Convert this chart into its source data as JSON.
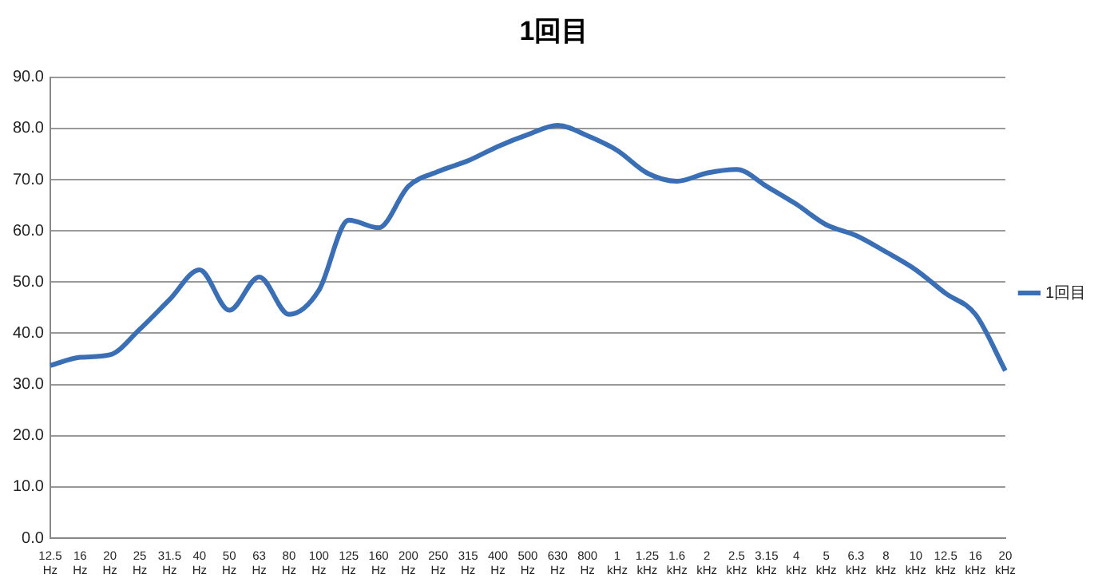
{
  "chart_data": {
    "type": "line",
    "title": "1回目",
    "categories": [
      "12.5 Hz",
      "16 Hz",
      "20 Hz",
      "25 Hz",
      "31.5 Hz",
      "40 Hz",
      "50 Hz",
      "63 Hz",
      "80 Hz",
      "100 Hz",
      "125 Hz",
      "160 Hz",
      "200 Hz",
      "250 Hz",
      "315 Hz",
      "400 Hz",
      "500 Hz",
      "630 Hz",
      "800 Hz",
      "1 kHz",
      "1.25 kHz",
      "1.6 kHz",
      "2 kHz",
      "2.5 kHz",
      "3.15 kHz",
      "4 kHz",
      "5 kHz",
      "6.3 kHz",
      "8 kHz",
      "10 kHz",
      "12.5 kHz",
      "16 kHz",
      "20 kHz"
    ],
    "series": [
      {
        "name": "1回目",
        "color": "#3a6eb5",
        "values": [
          33.7,
          35.3,
          35.8,
          40.8,
          46.6,
          52.4,
          44.5,
          51.0,
          43.7,
          48.4,
          62.1,
          60.6,
          68.7,
          71.6,
          73.7,
          76.5,
          78.8,
          80.6,
          78.6,
          75.7,
          71.3,
          69.7,
          71.3,
          72.0,
          68.7,
          65.2,
          61.2,
          59.1,
          55.9,
          52.4,
          47.8,
          43.7,
          32.7
        ]
      }
    ],
    "ylim": [
      0,
      90
    ],
    "yticks": [
      {
        "value": 0,
        "label": "0.0"
      },
      {
        "value": 10,
        "label": "10.0"
      },
      {
        "value": 20,
        "label": "20.0"
      },
      {
        "value": 30,
        "label": "30.0"
      },
      {
        "value": 40,
        "label": "40.0"
      },
      {
        "value": 50,
        "label": "50.0"
      },
      {
        "value": 60,
        "label": "60.0"
      },
      {
        "value": 70,
        "label": "70.0"
      },
      {
        "value": 80,
        "label": "80.0"
      },
      {
        "value": 90,
        "label": "90.0"
      }
    ],
    "grid": "y",
    "legend": "right",
    "marker": "none",
    "line_style": "solid"
  }
}
